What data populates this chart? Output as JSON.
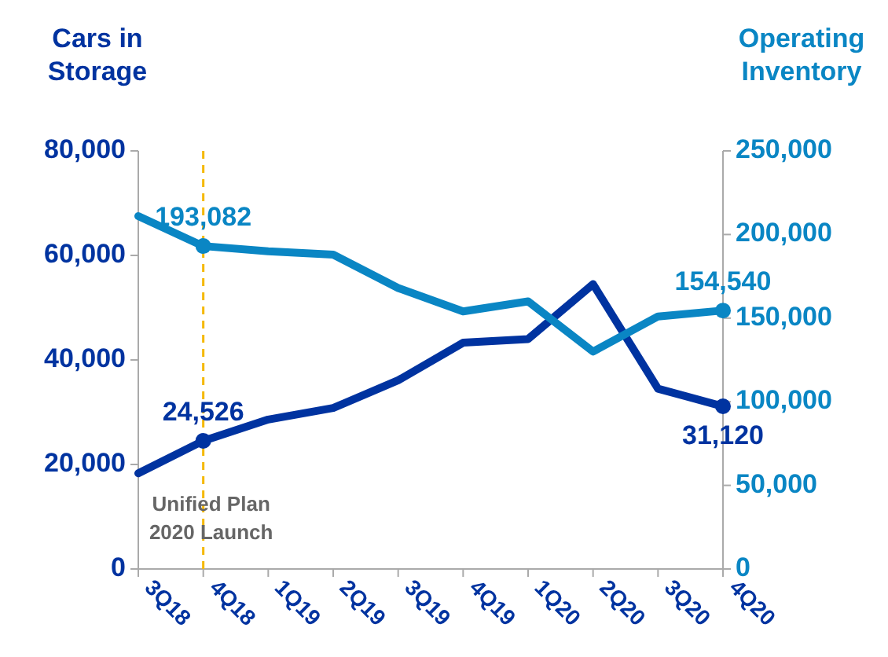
{
  "chart_data": {
    "type": "line",
    "ylabel": "Cars in Storage",
    "y2label": "Operating Inventory",
    "categories": [
      "3Q18",
      "4Q18",
      "1Q19",
      "2Q19",
      "3Q19",
      "4Q19",
      "1Q20",
      "2Q20",
      "3Q20",
      "4Q20"
    ],
    "series": [
      {
        "color": "#0033a0",
        "values": [
          18300,
          24526,
          28600,
          30800,
          36100,
          43300,
          44000,
          54500,
          34500,
          31120
        ],
        "value_labels": [
          null,
          "24,526",
          null,
          null,
          null,
          null,
          null,
          null,
          null,
          "31,120"
        ]
      },
      {
        "color": "#0a86c4",
        "axis": "y2",
        "values": [
          211000,
          193082,
          190000,
          188000,
          168000,
          154000,
          160000,
          130000,
          151000,
          154540
        ],
        "value_labels": [
          null,
          "193,082",
          null,
          null,
          null,
          null,
          null,
          null,
          null,
          "154,540"
        ]
      }
    ],
    "ylim": [
      0,
      80000
    ],
    "yticks": [
      {
        "value": 0,
        "label": "0"
      },
      {
        "value": 20000,
        "label": "20,000"
      },
      {
        "value": 40000,
        "label": "40,000"
      },
      {
        "value": 60000,
        "label": "60,000"
      },
      {
        "value": 80000,
        "label": "80,000"
      }
    ],
    "y2lim": [
      0,
      250000
    ],
    "y2ticks": [
      {
        "value": 0,
        "label": "0"
      },
      {
        "value": 50000,
        "label": "50,000"
      },
      {
        "value": 100000,
        "label": "100,000"
      },
      {
        "value": 150000,
        "label": "150,000"
      },
      {
        "value": 200000,
        "label": "200,000"
      },
      {
        "value": 250000,
        "label": "250,000"
      }
    ],
    "ref_lines": [
      {
        "axis": "x",
        "value": "4Q18",
        "label": "Unified Plan 2020 Launch",
        "color": "#f5b800",
        "line_style": "dashed"
      }
    ],
    "grid": false
  }
}
